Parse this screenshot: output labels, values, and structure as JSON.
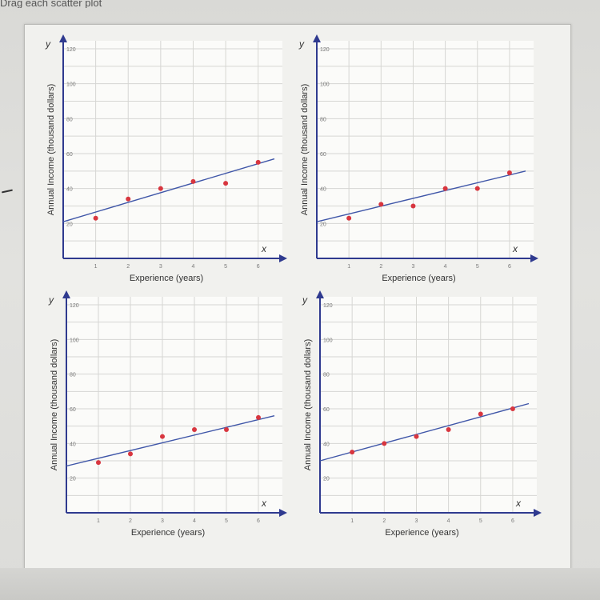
{
  "header": {
    "text": "Drag each scatter plot"
  },
  "colors": {
    "point": "#d8363f",
    "trend_line": "#3f56a8",
    "axis": "#2f3a8f"
  },
  "chart_data": [
    {
      "type": "scatter",
      "xlabel": "Experience (years)",
      "ylabel": "Annual Income (thousand dollars)",
      "x_axis_name": "x",
      "y_axis_name": "y",
      "xlim": [
        0,
        6.5
      ],
      "ylim": [
        0,
        120
      ],
      "x_ticks": [
        "1",
        "2",
        "3",
        "4",
        "5",
        "6"
      ],
      "y_ticks": [
        "20",
        "40",
        "60",
        "80",
        "100",
        "120"
      ],
      "points": [
        [
          1,
          23
        ],
        [
          2,
          34
        ],
        [
          3,
          40
        ],
        [
          4,
          44
        ],
        [
          5,
          43
        ],
        [
          6,
          55
        ]
      ],
      "trend_line": [
        [
          0,
          21
        ],
        [
          6.5,
          57
        ]
      ],
      "grid": true
    },
    {
      "type": "scatter",
      "xlabel": "Experience (years)",
      "ylabel": "Annual Income (thousand dollars)",
      "x_axis_name": "x",
      "y_axis_name": "y",
      "xlim": [
        0,
        6.5
      ],
      "ylim": [
        0,
        120
      ],
      "x_ticks": [
        "1",
        "2",
        "3",
        "4",
        "5",
        "6"
      ],
      "y_ticks": [
        "20",
        "40",
        "60",
        "80",
        "100",
        "120"
      ],
      "points": [
        [
          1,
          23
        ],
        [
          2,
          31
        ],
        [
          3,
          30
        ],
        [
          4,
          40
        ],
        [
          5,
          40
        ],
        [
          6,
          49
        ]
      ],
      "trend_line": [
        [
          0,
          21
        ],
        [
          6.5,
          50
        ]
      ],
      "grid": true
    },
    {
      "type": "scatter",
      "xlabel": "Experience (years)",
      "ylabel": "Annual Income (thousand dollars)",
      "x_axis_name": "x",
      "y_axis_name": "y",
      "xlim": [
        0,
        6.5
      ],
      "ylim": [
        0,
        120
      ],
      "x_ticks": [
        "1",
        "2",
        "3",
        "4",
        "5",
        "6"
      ],
      "y_ticks": [
        "20",
        "40",
        "60",
        "80",
        "100",
        "120"
      ],
      "points": [
        [
          1,
          29
        ],
        [
          2,
          34
        ],
        [
          3,
          44
        ],
        [
          4,
          48
        ],
        [
          5,
          48
        ],
        [
          6,
          55
        ]
      ],
      "trend_line": [
        [
          0,
          27
        ],
        [
          6.5,
          56
        ]
      ],
      "grid": true
    },
    {
      "type": "scatter",
      "xlabel": "Experience (years)",
      "ylabel": "Annual Income (thousand dollars)",
      "x_axis_name": "x",
      "y_axis_name": "y",
      "xlim": [
        0,
        6.5
      ],
      "ylim": [
        0,
        120
      ],
      "x_ticks": [
        "1",
        "2",
        "3",
        "4",
        "5",
        "6"
      ],
      "y_ticks": [
        "20",
        "40",
        "60",
        "80",
        "100",
        "120"
      ],
      "points": [
        [
          1,
          35
        ],
        [
          2,
          40
        ],
        [
          3,
          44
        ],
        [
          4,
          48
        ],
        [
          5,
          57
        ],
        [
          6,
          60
        ]
      ],
      "trend_line": [
        [
          0,
          30
        ],
        [
          6.5,
          63
        ]
      ],
      "grid": true
    }
  ]
}
